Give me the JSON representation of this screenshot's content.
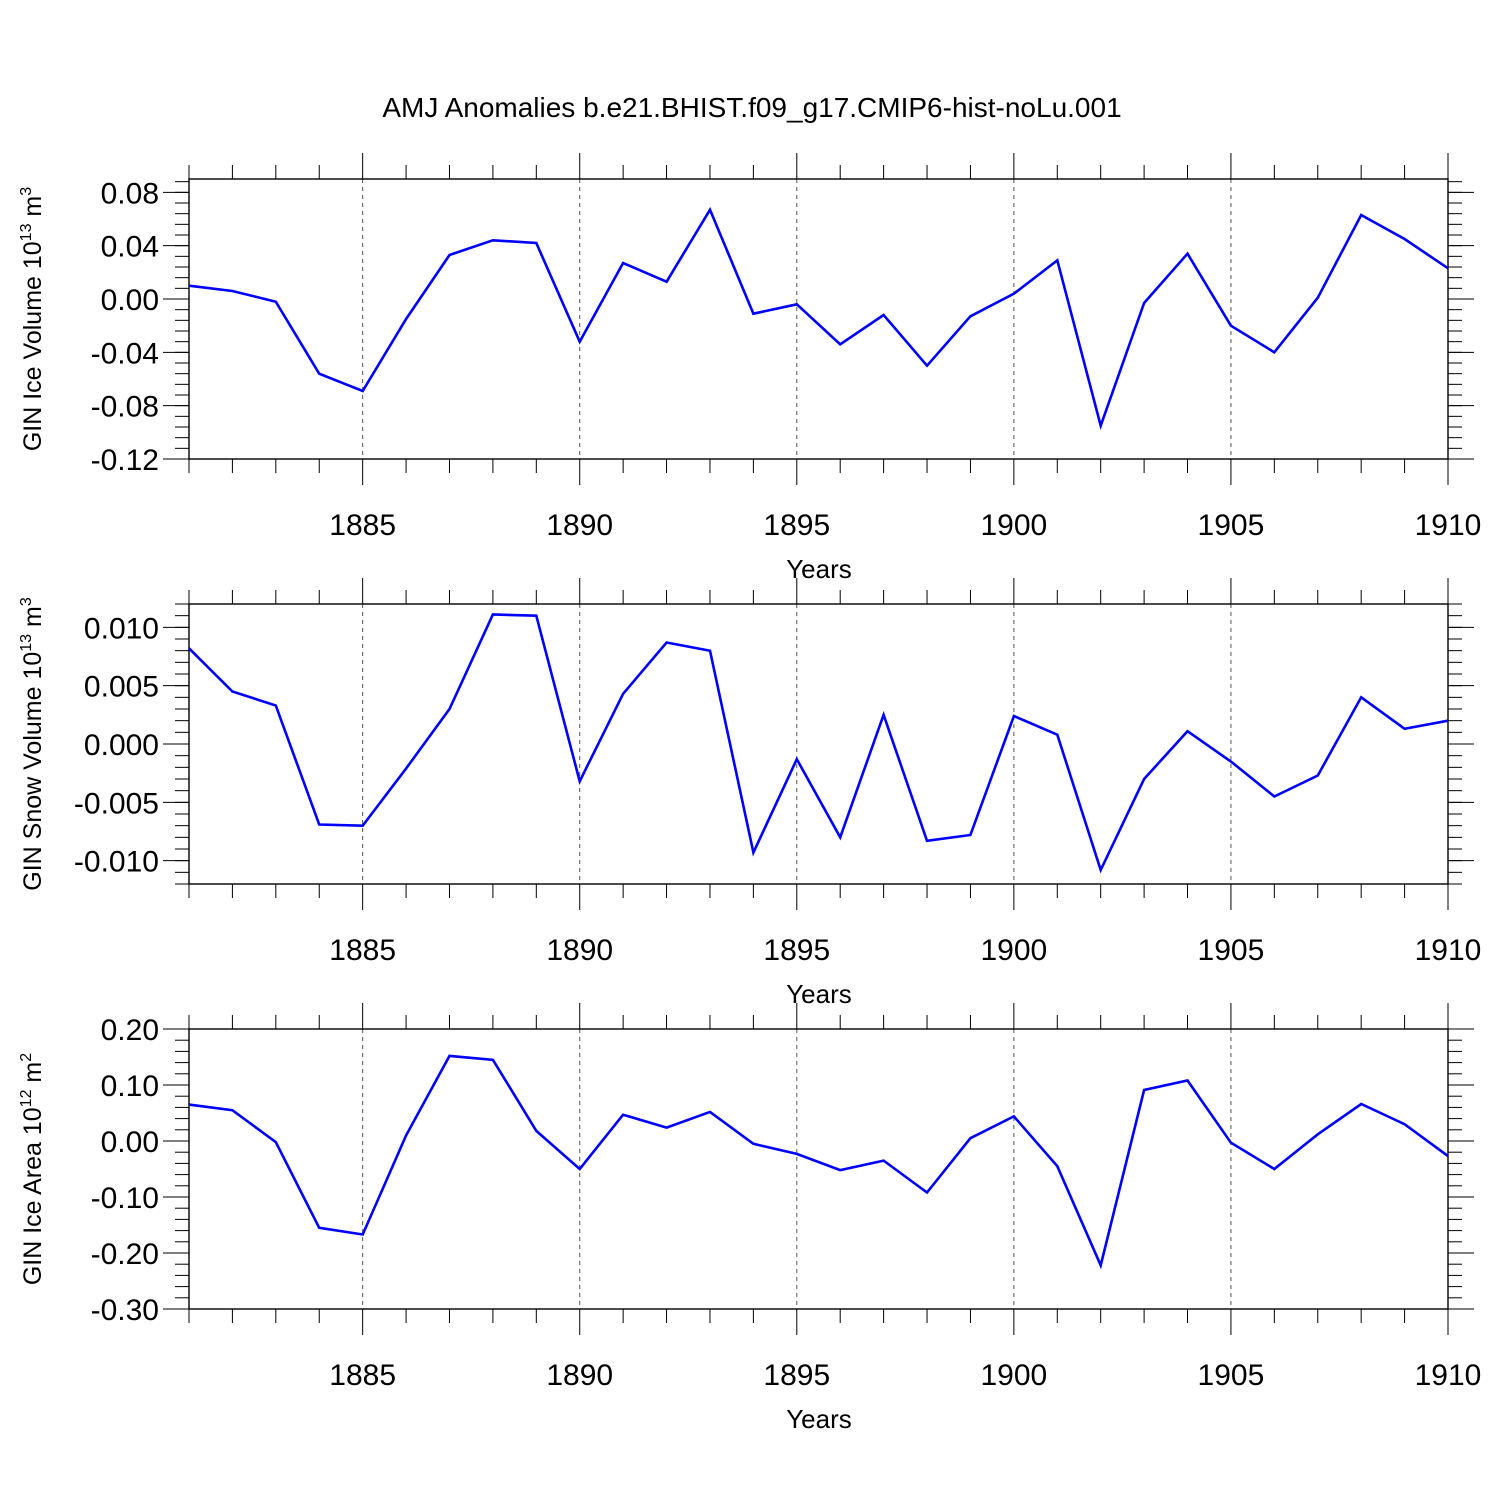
{
  "title": "AMJ Anomalies b.e21.BHIST.f09_g17.CMIP6-hist-noLu.001",
  "line_color": "#0000ff",
  "chart_data": [
    {
      "type": "line",
      "title": "",
      "xlabel": "Years",
      "ylabel": {
        "text": "GIN Ice Volume 10",
        "exp": "13",
        "unit": " m",
        "unit_exp": "3"
      },
      "xlim": [
        1881,
        1910
      ],
      "ylim": [
        -0.12,
        0.09
      ],
      "x_ticks": [
        1885,
        1890,
        1895,
        1900,
        1905,
        1910
      ],
      "y_ticks": [
        "0.08",
        "0.04",
        "0.00",
        "-0.04",
        "-0.08",
        "-0.12"
      ],
      "y_tick_values": [
        0.08,
        0.04,
        0.0,
        -0.04,
        -0.08,
        -0.12
      ],
      "grid": "dashed vertical at major ticks",
      "x": [
        1881,
        1882,
        1883,
        1884,
        1885,
        1886,
        1887,
        1888,
        1889,
        1890,
        1891,
        1892,
        1893,
        1894,
        1895,
        1896,
        1897,
        1898,
        1899,
        1900,
        1901,
        1902,
        1903,
        1904,
        1905,
        1906,
        1907,
        1908,
        1909,
        1910
      ],
      "series": [
        {
          "values": [
            0.01,
            0.006,
            -0.002,
            -0.056,
            -0.069,
            -0.015,
            0.033,
            0.044,
            0.042,
            -0.032,
            0.027,
            0.013,
            0.067,
            -0.011,
            -0.004,
            -0.034,
            -0.012,
            -0.05,
            -0.013,
            0.004,
            0.029,
            -0.095,
            -0.003,
            0.034,
            -0.02,
            -0.04,
            0.001,
            0.063,
            0.045,
            0.023
          ]
        }
      ]
    },
    {
      "type": "line",
      "title": "",
      "xlabel": "Years",
      "ylabel": {
        "text": "GIN Snow Volume 10",
        "exp": "13",
        "unit": " m",
        "unit_exp": "3"
      },
      "xlim": [
        1881,
        1910
      ],
      "ylim": [
        -0.012,
        0.012
      ],
      "x_ticks": [
        1885,
        1890,
        1895,
        1900,
        1905,
        1910
      ],
      "y_ticks": [
        "0.010",
        "0.005",
        "0.000",
        "-0.005",
        "-0.010"
      ],
      "y_tick_values": [
        0.01,
        0.005,
        0.0,
        -0.005,
        -0.01
      ],
      "grid": "dashed vertical at major ticks",
      "x": [
        1881,
        1882,
        1883,
        1884,
        1885,
        1886,
        1887,
        1888,
        1889,
        1890,
        1891,
        1892,
        1893,
        1894,
        1895,
        1896,
        1897,
        1898,
        1899,
        1900,
        1901,
        1902,
        1903,
        1904,
        1905,
        1906,
        1907,
        1908,
        1909,
        1910
      ],
      "series": [
        {
          "values": [
            0.0082,
            0.0045,
            0.0033,
            -0.0069,
            -0.007,
            -0.0021,
            0.003,
            0.0111,
            0.011,
            -0.0032,
            0.0043,
            0.0087,
            0.008,
            -0.0093,
            -0.0013,
            -0.008,
            0.0025,
            -0.0083,
            -0.0078,
            0.0024,
            0.0008,
            -0.0108,
            -0.003,
            0.0011,
            -0.0015,
            -0.0045,
            -0.0027,
            0.004,
            0.0013,
            0.002
          ]
        }
      ]
    },
    {
      "type": "line",
      "title": "",
      "xlabel": "Years",
      "ylabel": {
        "text": "GIN Ice Area 10",
        "exp": "12",
        "unit": " m",
        "unit_exp": "2"
      },
      "xlim": [
        1881,
        1910
      ],
      "ylim": [
        -0.3,
        0.2
      ],
      "x_ticks": [
        1885,
        1890,
        1895,
        1900,
        1905,
        1910
      ],
      "y_ticks": [
        "0.20",
        "0.10",
        "0.00",
        "-0.10",
        "-0.20",
        "-0.30"
      ],
      "y_tick_values": [
        0.2,
        0.1,
        0.0,
        -0.1,
        -0.2,
        -0.3
      ],
      "grid": "dashed vertical at major ticks",
      "x": [
        1881,
        1882,
        1883,
        1884,
        1885,
        1886,
        1887,
        1888,
        1889,
        1890,
        1891,
        1892,
        1893,
        1894,
        1895,
        1896,
        1897,
        1898,
        1899,
        1900,
        1901,
        1902,
        1903,
        1904,
        1905,
        1906,
        1907,
        1908,
        1909,
        1910
      ],
      "series": [
        {
          "values": [
            0.065,
            0.055,
            -0.002,
            -0.155,
            -0.167,
            0.01,
            0.152,
            0.145,
            0.018,
            -0.05,
            0.047,
            0.024,
            0.052,
            -0.005,
            -0.023,
            -0.052,
            -0.035,
            -0.092,
            0.005,
            0.044,
            -0.045,
            -0.222,
            0.091,
            0.108,
            -0.003,
            -0.05,
            0.012,
            0.066,
            0.03,
            -0.027
          ]
        }
      ]
    }
  ]
}
